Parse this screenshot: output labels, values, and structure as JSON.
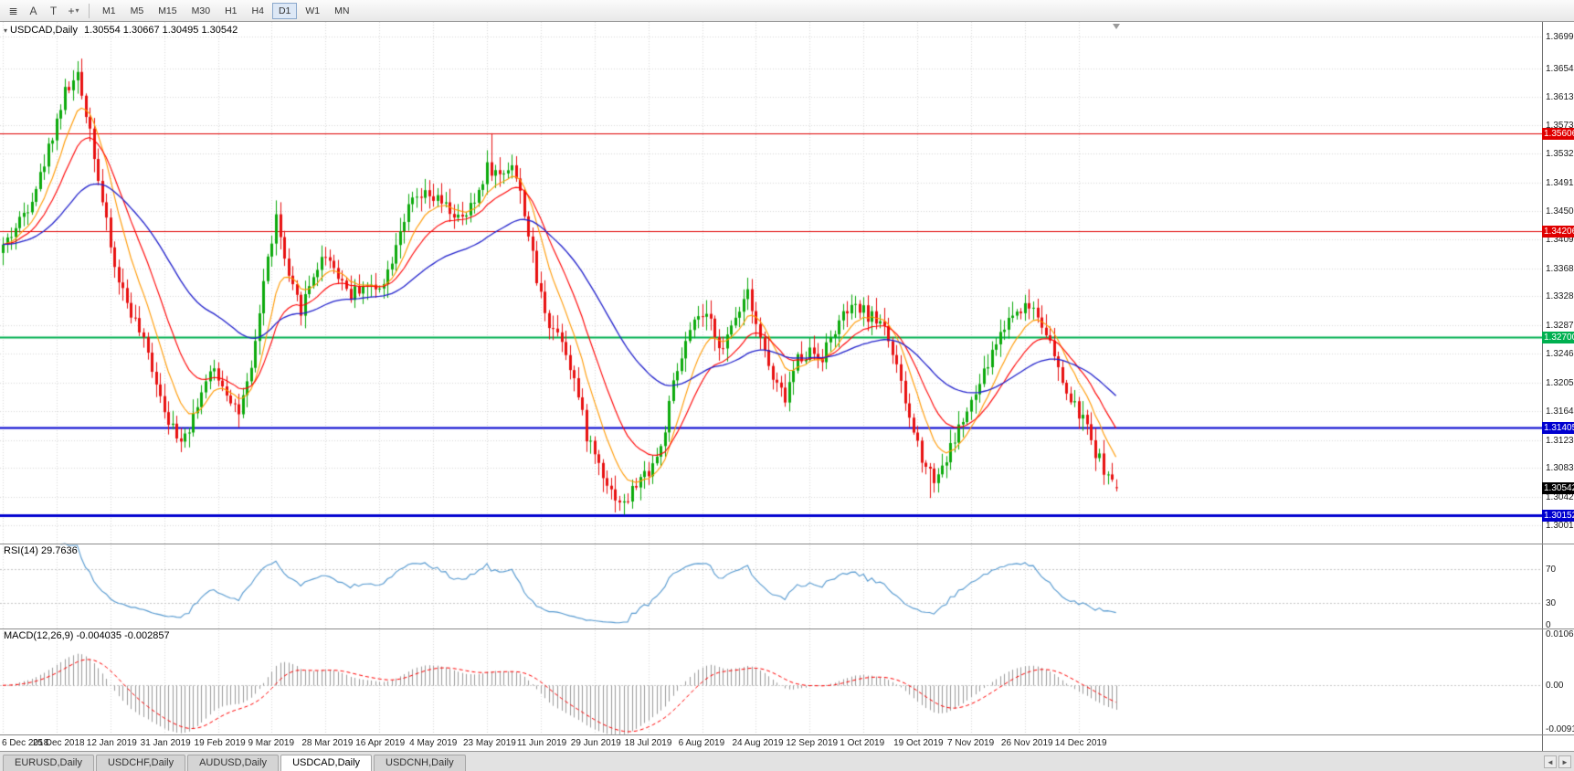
{
  "toolbar": {
    "icons": [
      {
        "name": "chart-list",
        "glyph": "≣"
      },
      {
        "name": "arrow-tool",
        "glyph": "A"
      },
      {
        "name": "text-tool",
        "glyph": "T"
      },
      {
        "name": "crosshair-tool",
        "glyph": "+",
        "caret": "▾"
      }
    ],
    "timeframes": [
      "M1",
      "M5",
      "M15",
      "M30",
      "H1",
      "H4",
      "D1",
      "W1",
      "MN"
    ],
    "active_timeframe": "D1"
  },
  "chart": {
    "header": {
      "marker": "▾",
      "symbol_period": "USDCAD,Daily",
      "ohlc": "1.30554 1.30667 1.30495 1.30542"
    }
  },
  "chart_data": {
    "type": "candlestick",
    "title": "USDCAD,Daily",
    "ohlc_display": {
      "open": "1.30554",
      "high": "1.30667",
      "low": "1.30495",
      "close": "1.30542"
    },
    "grid": true,
    "num_candles": 270,
    "candles_per_tick": 13,
    "x_ticks": [
      "6 Dec 2018",
      "25 Dec 2018",
      "12 Jan 2019",
      "31 Jan 2019",
      "19 Feb 2019",
      "9 Mar 2019",
      "28 Mar 2019",
      "16 Apr 2019",
      "4 May 2019",
      "23 May 2019",
      "11 Jun 2019",
      "29 Jun 2019",
      "18 Jul 2019",
      "6 Aug 2019",
      "24 Aug 2019",
      "12 Sep 2019",
      "1 Oct 2019",
      "19 Oct 2019",
      "7 Nov 2019",
      "26 Nov 2019",
      "14 Dec 2019"
    ],
    "price_axis_ticks": [
      "1.36990",
      "1.36540",
      "1.36130",
      "1.35730",
      "1.35320",
      "1.34910",
      "1.34500",
      "1.34090",
      "1.33680",
      "1.33280",
      "1.32870",
      "1.32460",
      "1.32050",
      "1.31640",
      "1.31230",
      "1.30830",
      "1.30420",
      "1.30010"
    ],
    "price_range": [
      1.2975,
      1.372
    ],
    "price_path_step3": [
      1.34,
      1.3426,
      1.3458,
      1.35,
      1.356,
      1.362,
      1.364,
      1.3568,
      1.3462,
      1.3368,
      1.332,
      1.3277,
      1.3227,
      1.317,
      1.3123,
      1.3143,
      1.3193,
      1.3223,
      1.3193,
      1.3162,
      1.3218,
      1.335,
      1.344,
      1.335,
      1.331,
      1.336,
      1.339,
      1.336,
      1.333,
      1.3345,
      1.3337,
      1.3363,
      1.3427,
      1.3463,
      1.347,
      1.3465,
      1.345,
      1.3435,
      1.3463,
      1.3513,
      1.35,
      1.352,
      1.345,
      1.335,
      1.329,
      1.327,
      1.321,
      1.313,
      1.309,
      1.305,
      1.303,
      1.306,
      1.308,
      1.311,
      1.32,
      1.326,
      1.33,
      1.329,
      1.325,
      1.33,
      1.334,
      1.327,
      1.3207,
      1.3183,
      1.324,
      1.325,
      1.3243,
      1.328,
      1.3307,
      1.331,
      1.3297,
      1.329,
      1.3223,
      1.3153,
      1.31,
      1.3067,
      1.3097,
      1.314,
      1.3173,
      1.3217,
      1.3263,
      1.3297,
      1.3313,
      1.3313,
      1.328,
      1.322,
      1.3177,
      1.3153,
      1.3107,
      1.3071
    ],
    "last_candle": [
      1.30554,
      1.30667,
      1.30495,
      1.30542
    ],
    "spikes": [
      {
        "i": 18,
        "h": 1.3664
      },
      {
        "i": 118,
        "h": 1.3561
      },
      {
        "i": 150,
        "l": 1.3016
      },
      {
        "i": 224,
        "l": 1.304
      }
    ],
    "bull_color": "#0caa0c",
    "bear_color": "#e81010",
    "levels": [
      {
        "value": "1.35606",
        "price": 1.35606,
        "color": "#e00000",
        "width": 1
      },
      {
        "value": "1.34206",
        "price": 1.34206,
        "color": "#e00000",
        "width": 1
      },
      {
        "value": "1.32700",
        "price": 1.327,
        "color": "#00b050",
        "width": 2
      },
      {
        "value": "1.31405",
        "price": 1.31405,
        "color": "#0000d0",
        "width": 2
      },
      {
        "value": "1.30152",
        "price": 1.30152,
        "color": "#0000d0",
        "width": 3
      }
    ],
    "current_price": {
      "value": "1.30542",
      "price": 1.30542,
      "color": "#000000"
    },
    "moving_averages": [
      {
        "name": "fast-ma",
        "period": 9,
        "color": "#ff9900"
      },
      {
        "name": "medium-ma",
        "period": 18,
        "color": "#ff0000"
      },
      {
        "name": "slow-ma",
        "period": 48,
        "color": "#2121cc"
      }
    ],
    "rsi": {
      "label": "RSI(14) 29.7636",
      "period": 14,
      "current": "29.7636",
      "levels": [
        70,
        30
      ],
      "axis_labels": [
        "70",
        "30",
        "0"
      ],
      "color": "#5599d0"
    },
    "macd": {
      "label": "MACD(12,26,9) -0.004035 -0.002857",
      "params": "12,26,9",
      "main_value": "-0.004035",
      "signal_value": "-0.002857",
      "axis_labels": [
        "0.010615",
        "0.00",
        "-0.00918"
      ],
      "range": [
        -0.00918,
        0.010615
      ],
      "histogram_color": "#9a9a9a",
      "signal_color": "#ff0000"
    }
  },
  "tabs": {
    "items": [
      {
        "label": "EURUSD,Daily",
        "active": false
      },
      {
        "label": "USDCHF,Daily",
        "active": false
      },
      {
        "label": "AUDUSD,Daily",
        "active": false
      },
      {
        "label": "USDCAD,Daily",
        "active": true
      },
      {
        "label": "USDCNH,Daily",
        "active": false
      }
    ],
    "scroll_left": "◄",
    "scroll_right": "►"
  }
}
